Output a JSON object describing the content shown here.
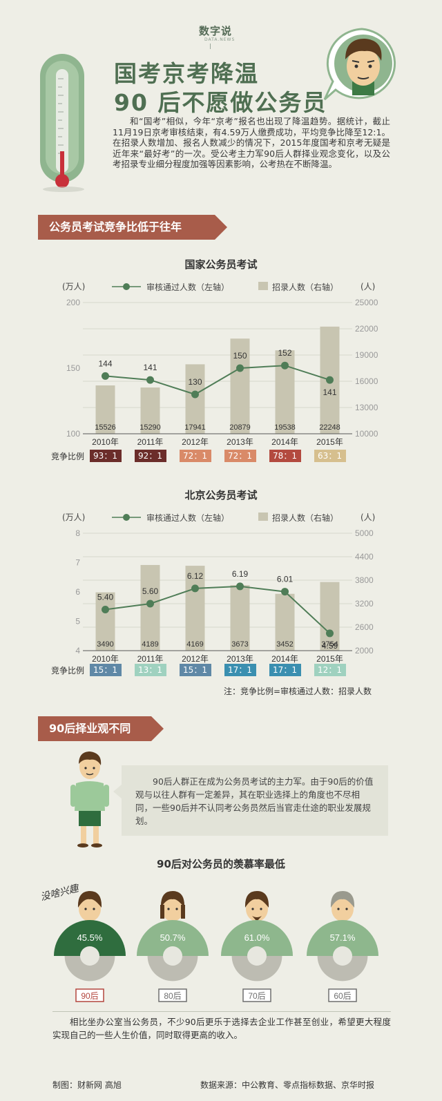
{
  "header": {
    "brand": "数字说",
    "brand_sub": "DATA.NEWS",
    "title_line1": "国考京考降温",
    "title_line2": "90 后不愿做公务员",
    "intro": "和“国考”相似，今年“京考”报名也出现了降温趋势。据统计，截止11月19日京考审核结束，有4.59万人缴费成功，平均竞争比降至12:1。在招录人数增加、报名人数减少的情况下，2015年度国考和京考无疑是近年来“最好考”的一次。受公考主力军90后人群择业观念变化，以及公考招录专业细分程度加强等因素影响，公考热在不断降温。"
  },
  "section1": {
    "label": "公务员考试竞争比低于往年"
  },
  "chart_data": [
    {
      "type": "bar",
      "title": "国家公务员考试",
      "left_unit": "(万人)",
      "right_unit": "(人)",
      "legend_line": "审核通过人数（左轴）",
      "legend_bar": "招录人数（右轴）",
      "categories": [
        "2010年",
        "2011年",
        "2012年",
        "2013年",
        "2014年",
        "2015年"
      ],
      "series": [
        {
          "name": "审核通过人数（左轴）",
          "type": "line",
          "axis": "left",
          "values": [
            144,
            141,
            130,
            150,
            152,
            141
          ],
          "labels": [
            "144",
            "141",
            "130",
            "150",
            "152",
            "141"
          ]
        },
        {
          "name": "招录人数（右轴）",
          "type": "bar",
          "axis": "right",
          "values": [
            15526,
            15290,
            17941,
            20879,
            19538,
            22248
          ]
        }
      ],
      "ylim_left": [
        100,
        200
      ],
      "yticks_left": [
        "200",
        "150",
        "100"
      ],
      "ylim_right": [
        10000,
        25000
      ],
      "yticks_right": [
        "25000",
        "22000",
        "19000",
        "16000",
        "13000",
        "10000"
      ],
      "ratio_label": "竞争比例",
      "ratios": [
        "93：1",
        "92：1",
        "72：1",
        "72：1",
        "78：1",
        "63：1"
      ],
      "ratio_colors": [
        "#6b2d2a",
        "#6b2d2a",
        "#d98a68",
        "#d98a68",
        "#b34a3f",
        "#d6bf8e"
      ]
    },
    {
      "type": "bar",
      "title": "北京公务员考试",
      "left_unit": "(万人)",
      "right_unit": "(人)",
      "legend_line": "审核通过人数（左轴）",
      "legend_bar": "招录人数（右轴）",
      "categories": [
        "2010年",
        "2011年",
        "2012年",
        "2013年",
        "2014年",
        "2015年"
      ],
      "series": [
        {
          "name": "审核通过人数（左轴）",
          "type": "line",
          "axis": "left",
          "values": [
            5.4,
            5.6,
            6.12,
            6.19,
            6.01,
            4.59
          ],
          "labels": [
            "5.40",
            "5.60",
            "6.12",
            "6.19",
            "6.01",
            "4.59"
          ]
        },
        {
          "name": "招录人数（右轴）",
          "type": "bar",
          "axis": "right",
          "values": [
            3490,
            4189,
            4169,
            3673,
            3452,
            3754
          ]
        }
      ],
      "ylim_left": [
        4,
        8
      ],
      "yticks_left": [
        "8",
        "7",
        "6",
        "5",
        "4"
      ],
      "ylim_right": [
        2000,
        5000
      ],
      "yticks_right": [
        "5000",
        "4400",
        "3800",
        "3200",
        "2600",
        "2000"
      ],
      "ratio_label": "竞争比例",
      "ratios": [
        "15：1",
        "13：1",
        "15：1",
        "17：1",
        "17：1",
        "12：1"
      ],
      "ratio_colors": [
        "#5f88a6",
        "#9fd1bf",
        "#5f88a6",
        "#3a8fb0",
        "#3a8fb0",
        "#9fd1bf"
      ]
    }
  ],
  "note": "注：竞争比例=审核通过人数：招录人数",
  "section2": {
    "label": "90后择业观不同"
  },
  "speech": "90后人群正在成为公务员考试的主力军。由于90后的价值观与以往人群有一定差异，其在职业选择上的角度也不尽相同，一些90后并不认同考公务员然后当官走仕途的职业发展规划。",
  "envy": {
    "title": "90后对公务员的羡慕率最低",
    "handwriting": "没啥兴趣",
    "groups": [
      {
        "label": "90后",
        "value": "45.5%",
        "pct": 45.5,
        "color": "#2f6d3e",
        "tag": "#b3453d"
      },
      {
        "label": "80后",
        "value": "50.7%",
        "pct": 50.7,
        "color": "#8eb78d",
        "tag": "#6e6e6e"
      },
      {
        "label": "70后",
        "value": "61.0%",
        "pct": 61.0,
        "color": "#8eb78d",
        "tag": "#6e6e6e"
      },
      {
        "label": "60后",
        "value": "57.1%",
        "pct": 57.1,
        "color": "#8eb78d",
        "tag": "#6e6e6e"
      }
    ]
  },
  "conclusion": "相比坐办公室当公务员，不少90后更乐于选择去企业工作甚至创业，希望更大程度实现自己的一些人生价值，同时取得更高的收入。",
  "footer": {
    "credit": "制图：财新网 高旭",
    "source": "数据来源：中公教育、零点指标数据、京华时报"
  }
}
